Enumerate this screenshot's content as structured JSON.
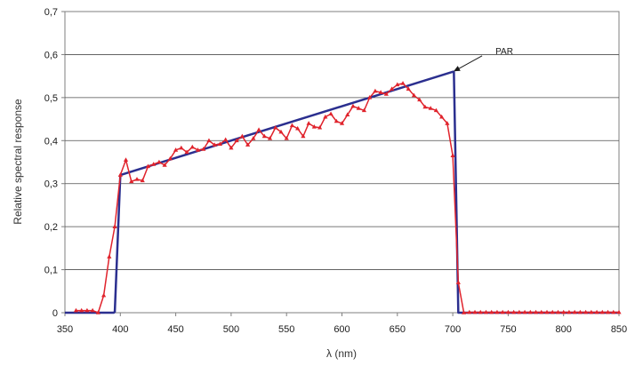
{
  "chart_data": {
    "type": "line",
    "title": "",
    "xlabel": "λ (nm)",
    "ylabel": "Relative spectral response",
    "xlim": [
      350,
      850
    ],
    "ylim": [
      0,
      0.7
    ],
    "x_ticks": [
      "350",
      "400",
      "450",
      "500",
      "550",
      "600",
      "650",
      "700",
      "750",
      "800",
      "850"
    ],
    "y_ticks": [
      "0",
      "0,1",
      "0,2",
      "0,3",
      "0,4",
      "0,5",
      "0,6",
      "0,7"
    ],
    "grid": "horizontal",
    "legend": "none",
    "annotation": {
      "text": "PAR",
      "x": 700,
      "y": 0.56
    },
    "series": [
      {
        "color": "#2b2f8f",
        "marker": "none",
        "x": [
          350,
          394,
          395,
          400,
          700,
          701,
          705,
          850
        ],
        "y": [
          0,
          0,
          0.002,
          0.32,
          0.56,
          0.56,
          0,
          0
        ]
      },
      {
        "color": "#e0232c",
        "marker": "triangle",
        "x": [
          360,
          365,
          370,
          375,
          380,
          385,
          390,
          395,
          400,
          405,
          410,
          415,
          420,
          425,
          430,
          435,
          440,
          445,
          450,
          455,
          460,
          465,
          470,
          475,
          480,
          485,
          490,
          495,
          500,
          505,
          510,
          515,
          520,
          525,
          530,
          535,
          540,
          545,
          550,
          555,
          560,
          565,
          570,
          575,
          580,
          585,
          590,
          595,
          600,
          605,
          610,
          615,
          620,
          625,
          630,
          635,
          640,
          645,
          650,
          655,
          660,
          665,
          670,
          675,
          680,
          685,
          690,
          695,
          700,
          705,
          710,
          715,
          720,
          725,
          730,
          735,
          740,
          745,
          750,
          755,
          760,
          765,
          770,
          775,
          780,
          785,
          790,
          795,
          800,
          805,
          810,
          815,
          820,
          825,
          830,
          835,
          840,
          845,
          850
        ],
        "y": [
          0.005,
          0.005,
          0.005,
          0.005,
          0,
          0.04,
          0.13,
          0.2,
          0.32,
          0.355,
          0.305,
          0.31,
          0.307,
          0.34,
          0.345,
          0.35,
          0.343,
          0.358,
          0.378,
          0.383,
          0.373,
          0.385,
          0.378,
          0.38,
          0.4,
          0.39,
          0.392,
          0.402,
          0.383,
          0.4,
          0.41,
          0.39,
          0.405,
          0.425,
          0.41,
          0.405,
          0.43,
          0.42,
          0.405,
          0.435,
          0.428,
          0.41,
          0.44,
          0.432,
          0.43,
          0.455,
          0.462,
          0.445,
          0.44,
          0.46,
          0.48,
          0.475,
          0.47,
          0.5,
          0.515,
          0.512,
          0.508,
          0.52,
          0.53,
          0.533,
          0.52,
          0.505,
          0.495,
          0.478,
          0.475,
          0.47,
          0.455,
          0.44,
          0.365,
          0.07,
          0,
          0.001,
          0.001,
          0.001,
          0.001,
          0.001,
          0.001,
          0.001,
          0.001,
          0.001,
          0.001,
          0.001,
          0.001,
          0.001,
          0.001,
          0.001,
          0.001,
          0.001,
          0.001,
          0.001,
          0.001,
          0.001,
          0.001,
          0.001,
          0.001,
          0.001,
          0.001,
          0.001,
          0.001
        ]
      }
    ]
  }
}
